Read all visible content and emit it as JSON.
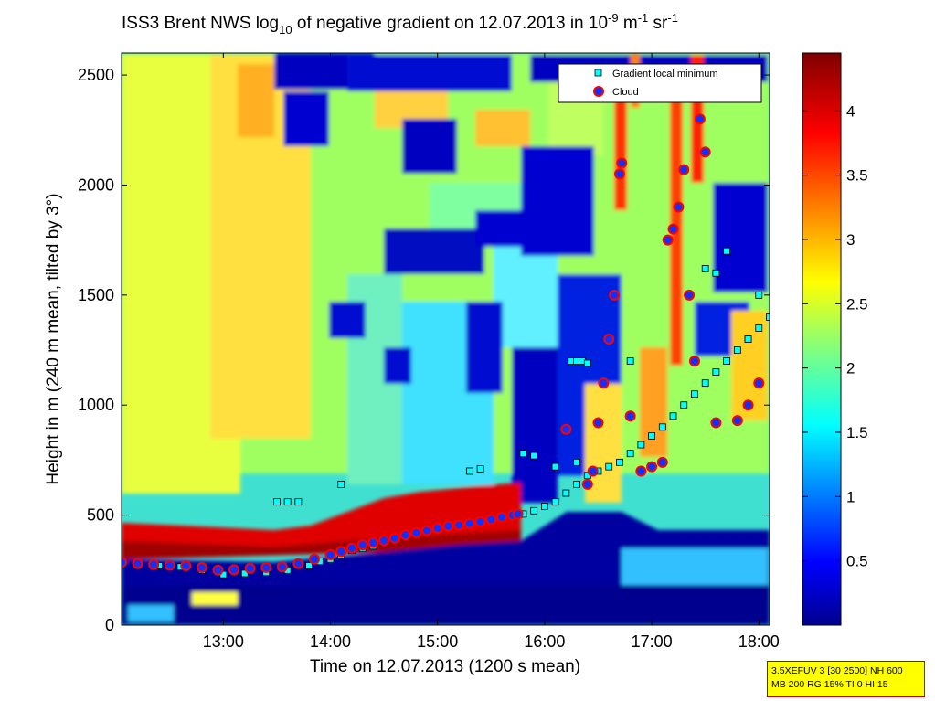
{
  "chart_data": {
    "type": "heatmap",
    "title": {
      "main": "ISS3 Brent NWS log",
      "sub": "10",
      "rest": " of negative gradient on 12.07.2013 in 10",
      "exp1": "-9",
      "unit1": " m",
      "exp2": "-1",
      "unit2": " sr",
      "exp3": "-1"
    },
    "xlabel": "Time on 12.07.2013 (1200 s mean)",
    "ylabel": "Height in m (240 m mean, tilted by 3°)",
    "xlim_hours": [
      12.05,
      18.1
    ],
    "ylim": [
      0,
      2600
    ],
    "x_ticks": [
      {
        "value": 13,
        "label": "13:00"
      },
      {
        "value": 14,
        "label": "14:00"
      },
      {
        "value": 15,
        "label": "15:00"
      },
      {
        "value": 16,
        "label": "16:00"
      },
      {
        "value": 17,
        "label": "17:00"
      },
      {
        "value": 18,
        "label": "18:00"
      }
    ],
    "y_ticks": [
      {
        "value": 0,
        "label": "0"
      },
      {
        "value": 500,
        "label": "500"
      },
      {
        "value": 1000,
        "label": "1000"
      },
      {
        "value": 1500,
        "label": "1500"
      },
      {
        "value": 2000,
        "label": "2000"
      },
      {
        "value": 2500,
        "label": "2500"
      }
    ],
    "colorbar": {
      "range": [
        0,
        4.45
      ],
      "ticks": [
        {
          "value": 0.5,
          "label": "0.5"
        },
        {
          "value": 1,
          "label": "1"
        },
        {
          "value": 1.5,
          "label": "1.5"
        },
        {
          "value": 2,
          "label": "2"
        },
        {
          "value": 2.5,
          "label": "2.5"
        },
        {
          "value": 3,
          "label": "3"
        },
        {
          "value": 3.5,
          "label": "3.5"
        },
        {
          "value": 4,
          "label": "4"
        }
      ],
      "colormap": [
        "#00008f",
        "#0000ff",
        "#0080ff",
        "#00ffff",
        "#80ff80",
        "#ffff00",
        "#ff8000",
        "#ff0000",
        "#800000"
      ]
    },
    "legend": {
      "position": "top-right",
      "entries": [
        {
          "label": "Gradient local minimum",
          "marker": "square",
          "color": "#00ffff"
        },
        {
          "label": "Cloud",
          "marker": "circle",
          "color": "#ff0000"
        }
      ]
    },
    "series": [
      {
        "name": "Gradient local minimum",
        "points": [
          [
            12.05,
            280
          ],
          [
            12.2,
            275
          ],
          [
            12.4,
            270
          ],
          [
            12.6,
            265
          ],
          [
            12.8,
            250
          ],
          [
            13.0,
            230
          ],
          [
            13.2,
            235
          ],
          [
            13.4,
            240
          ],
          [
            13.6,
            250
          ],
          [
            13.8,
            270
          ],
          [
            13.9,
            290
          ],
          [
            14.0,
            300
          ],
          [
            14.1,
            320
          ],
          [
            14.2,
            340
          ],
          [
            14.3,
            350
          ],
          [
            14.4,
            360
          ],
          [
            14.5,
            380
          ],
          [
            14.6,
            390
          ],
          [
            14.7,
            410
          ],
          [
            14.8,
            420
          ],
          [
            14.9,
            430
          ],
          [
            15.0,
            440
          ],
          [
            15.1,
            450
          ],
          [
            15.2,
            455
          ],
          [
            15.3,
            460
          ],
          [
            15.4,
            470
          ],
          [
            15.5,
            480
          ],
          [
            15.6,
            490
          ],
          [
            15.7,
            500
          ],
          [
            15.8,
            505
          ],
          [
            15.9,
            520
          ],
          [
            16.0,
            540
          ],
          [
            16.1,
            560
          ],
          [
            16.2,
            600
          ],
          [
            16.3,
            640
          ],
          [
            16.4,
            680
          ],
          [
            16.5,
            700
          ],
          [
            16.6,
            720
          ],
          [
            16.7,
            740
          ],
          [
            16.8,
            780
          ],
          [
            16.9,
            820
          ],
          [
            17.0,
            860
          ],
          [
            17.1,
            900
          ],
          [
            17.2,
            950
          ],
          [
            17.3,
            1000
          ],
          [
            17.4,
            1050
          ],
          [
            17.5,
            1100
          ],
          [
            17.6,
            1150
          ],
          [
            17.7,
            1200
          ],
          [
            17.8,
            1250
          ],
          [
            17.9,
            1300
          ],
          [
            18.0,
            1350
          ],
          [
            18.1,
            1400
          ],
          [
            13.5,
            560
          ],
          [
            13.6,
            560
          ],
          [
            13.7,
            560
          ],
          [
            14.1,
            640
          ],
          [
            15.3,
            700
          ],
          [
            15.4,
            710
          ],
          [
            15.8,
            780
          ],
          [
            15.9,
            770
          ],
          [
            16.1,
            720
          ],
          [
            16.3,
            740
          ],
          [
            16.25,
            1200
          ],
          [
            16.3,
            1200
          ],
          [
            16.35,
            1200
          ],
          [
            16.4,
            1190
          ],
          [
            16.8,
            1200
          ],
          [
            17.5,
            1620
          ],
          [
            17.6,
            1600
          ],
          [
            17.7,
            1700
          ],
          [
            17.9,
            1300
          ],
          [
            18.0,
            1500
          ]
        ]
      },
      {
        "name": "Cloud",
        "points": [
          [
            12.05,
            285
          ],
          [
            12.2,
            280
          ],
          [
            12.35,
            275
          ],
          [
            12.5,
            272
          ],
          [
            12.65,
            270
          ],
          [
            12.8,
            262
          ],
          [
            12.95,
            250
          ],
          [
            13.1,
            252
          ],
          [
            13.25,
            258
          ],
          [
            13.4,
            262
          ],
          [
            13.55,
            265
          ],
          [
            13.7,
            280
          ],
          [
            13.85,
            300
          ],
          [
            14.0,
            320
          ],
          [
            14.1,
            335
          ],
          [
            14.2,
            350
          ],
          [
            14.3,
            365
          ],
          [
            14.4,
            375
          ],
          [
            14.5,
            385
          ],
          [
            14.6,
            395
          ],
          [
            14.7,
            410
          ],
          [
            14.8,
            420
          ],
          [
            14.9,
            430
          ],
          [
            15.0,
            440
          ],
          [
            15.1,
            450
          ],
          [
            15.2,
            455
          ],
          [
            15.3,
            462
          ],
          [
            15.4,
            470
          ],
          [
            15.5,
            480
          ],
          [
            15.6,
            490
          ],
          [
            15.7,
            500
          ],
          [
            15.75,
            505
          ],
          [
            16.2,
            890
          ],
          [
            16.4,
            640
          ],
          [
            16.45,
            700
          ],
          [
            16.5,
            920
          ],
          [
            16.55,
            1100
          ],
          [
            16.6,
            1300
          ],
          [
            16.65,
            1500
          ],
          [
            16.7,
            2050
          ],
          [
            16.72,
            2100
          ],
          [
            16.8,
            950
          ],
          [
            16.9,
            700
          ],
          [
            17.0,
            720
          ],
          [
            17.1,
            740
          ],
          [
            17.15,
            1750
          ],
          [
            17.2,
            1800
          ],
          [
            17.25,
            1900
          ],
          [
            17.3,
            2070
          ],
          [
            17.35,
            1500
          ],
          [
            17.4,
            1200
          ],
          [
            17.45,
            2300
          ],
          [
            17.5,
            2150
          ],
          [
            17.6,
            920
          ],
          [
            17.8,
            930
          ],
          [
            17.9,
            1000
          ],
          [
            18.0,
            1100
          ]
        ]
      }
    ]
  },
  "info_box": {
    "line1": "3.5XEFUV 3 [30 2500] NH 600",
    "line2": "MB 200 RG 15% TI 0 HI 15"
  }
}
